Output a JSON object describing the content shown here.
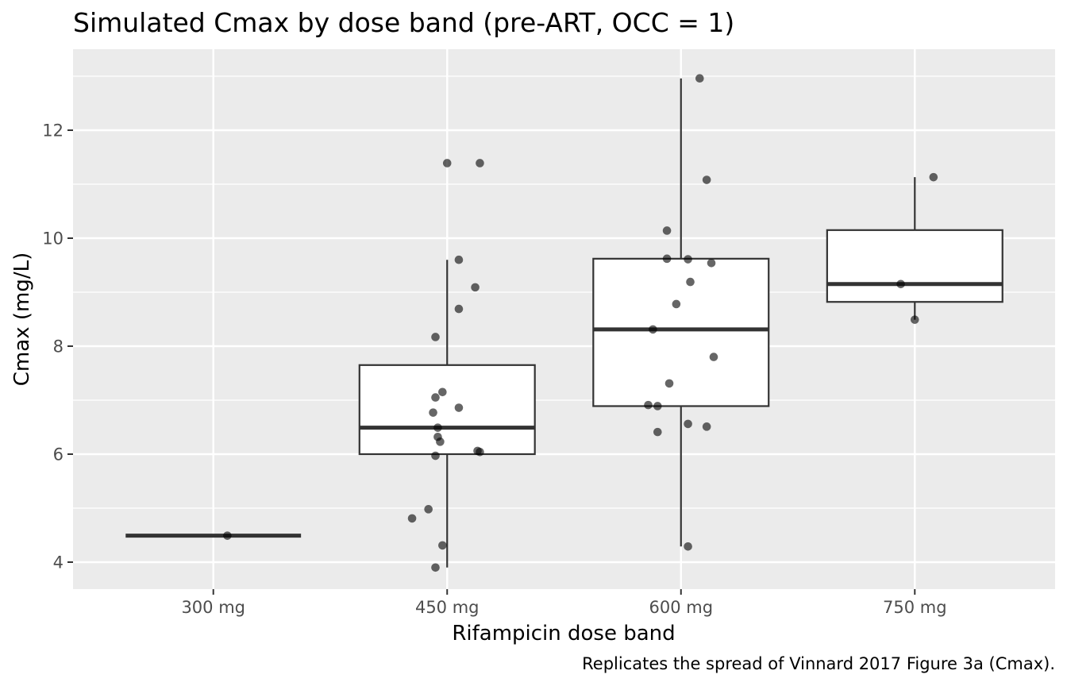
{
  "chart_data": {
    "type": "box",
    "title": "Simulated Cmax by dose band (pre-ART, OCC = 1)",
    "xlabel": "Rifampicin dose band",
    "ylabel": "Cmax (mg/L)",
    "caption": "Replicates the spread of Vinnard 2017 Figure 3a (Cmax).",
    "categories": [
      "300 mg",
      "450 mg",
      "600 mg",
      "750 mg"
    ],
    "ylim": [
      3.5,
      13.5
    ],
    "yticks": [
      4,
      6,
      8,
      10,
      12
    ],
    "ytick_labels": [
      "4",
      "6",
      "8",
      "10",
      "12"
    ],
    "grid": true,
    "boxes": [
      {
        "category": "300 mg",
        "whisker_low": 4.49,
        "q1": 4.49,
        "median": 4.49,
        "q3": 4.49,
        "whisker_high": 4.49
      },
      {
        "category": "450 mg",
        "whisker_low": 3.9,
        "q1": 6.0,
        "median": 6.49,
        "q3": 7.65,
        "whisker_high": 9.6
      },
      {
        "category": "600 mg",
        "whisker_low": 4.29,
        "q1": 6.89,
        "median": 8.31,
        "q3": 9.62,
        "whisker_high": 12.96
      },
      {
        "category": "750 mg",
        "whisker_low": 8.49,
        "q1": 8.82,
        "median": 9.15,
        "q3": 10.15,
        "whisker_high": 11.13
      }
    ],
    "points": [
      {
        "category": "300 mg",
        "jitter": 0.06,
        "y": 4.49
      },
      {
        "category": "450 mg",
        "jitter": 0.0,
        "y": 11.39
      },
      {
        "category": "450 mg",
        "jitter": 0.14,
        "y": 11.39
      },
      {
        "category": "450 mg",
        "jitter": 0.05,
        "y": 9.6
      },
      {
        "category": "450 mg",
        "jitter": 0.12,
        "y": 9.09
      },
      {
        "category": "450 mg",
        "jitter": 0.05,
        "y": 8.69
      },
      {
        "category": "450 mg",
        "jitter": -0.05,
        "y": 8.17
      },
      {
        "category": "450 mg",
        "jitter": -0.02,
        "y": 7.15
      },
      {
        "category": "450 mg",
        "jitter": -0.05,
        "y": 7.05
      },
      {
        "category": "450 mg",
        "jitter": 0.05,
        "y": 6.86
      },
      {
        "category": "450 mg",
        "jitter": -0.06,
        "y": 6.77
      },
      {
        "category": "450 mg",
        "jitter": -0.04,
        "y": 6.49
      },
      {
        "category": "450 mg",
        "jitter": -0.04,
        "y": 6.32
      },
      {
        "category": "450 mg",
        "jitter": -0.03,
        "y": 6.23
      },
      {
        "category": "450 mg",
        "jitter": 0.13,
        "y": 6.06
      },
      {
        "category": "450 mg",
        "jitter": 0.14,
        "y": 6.04
      },
      {
        "category": "450 mg",
        "jitter": -0.05,
        "y": 5.97
      },
      {
        "category": "450 mg",
        "jitter": -0.08,
        "y": 4.98
      },
      {
        "category": "450 mg",
        "jitter": -0.15,
        "y": 4.81
      },
      {
        "category": "450 mg",
        "jitter": -0.02,
        "y": 4.31
      },
      {
        "category": "450 mg",
        "jitter": -0.05,
        "y": 3.9
      },
      {
        "category": "600 mg",
        "jitter": 0.08,
        "y": 12.96
      },
      {
        "category": "600 mg",
        "jitter": 0.11,
        "y": 11.08
      },
      {
        "category": "600 mg",
        "jitter": -0.06,
        "y": 10.14
      },
      {
        "category": "600 mg",
        "jitter": -0.06,
        "y": 9.62
      },
      {
        "category": "600 mg",
        "jitter": 0.03,
        "y": 9.61
      },
      {
        "category": "600 mg",
        "jitter": 0.13,
        "y": 9.54
      },
      {
        "category": "600 mg",
        "jitter": 0.04,
        "y": 9.19
      },
      {
        "category": "600 mg",
        "jitter": -0.02,
        "y": 8.78
      },
      {
        "category": "600 mg",
        "jitter": -0.12,
        "y": 8.31
      },
      {
        "category": "600 mg",
        "jitter": 0.14,
        "y": 7.8
      },
      {
        "category": "600 mg",
        "jitter": -0.05,
        "y": 7.31
      },
      {
        "category": "600 mg",
        "jitter": -0.14,
        "y": 6.91
      },
      {
        "category": "600 mg",
        "jitter": -0.1,
        "y": 6.89
      },
      {
        "category": "600 mg",
        "jitter": 0.03,
        "y": 6.56
      },
      {
        "category": "600 mg",
        "jitter": 0.11,
        "y": 6.51
      },
      {
        "category": "600 mg",
        "jitter": -0.1,
        "y": 6.41
      },
      {
        "category": "600 mg",
        "jitter": 0.03,
        "y": 4.29
      },
      {
        "category": "750 mg",
        "jitter": 0.08,
        "y": 11.13
      },
      {
        "category": "750 mg",
        "jitter": -0.06,
        "y": 9.15
      },
      {
        "category": "750 mg",
        "jitter": 0.0,
        "y": 8.49
      }
    ],
    "colors": {
      "panel": "#ebebeb",
      "grid": "#ffffff",
      "box_fill": "#ffffff",
      "box_line": "#333333",
      "point": "#000000"
    }
  }
}
